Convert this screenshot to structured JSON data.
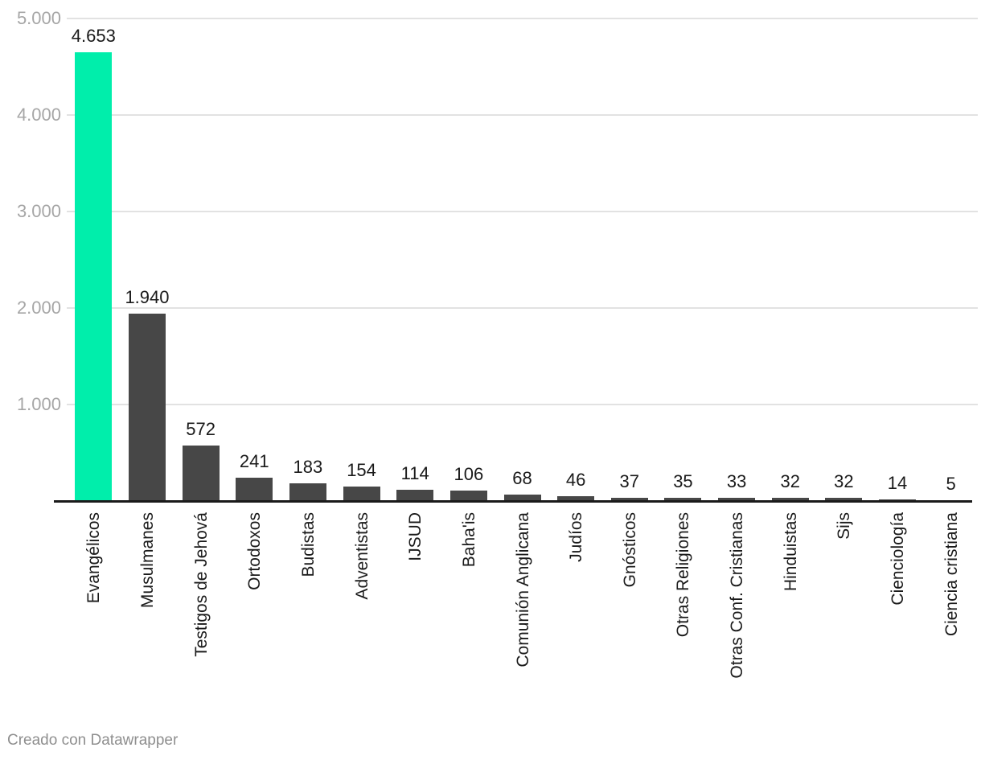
{
  "chart_data": {
    "type": "bar",
    "categories": [
      "Evangélicos",
      "Musulmanes",
      "Testigos de Jehová",
      "Ortodoxos",
      "Budistas",
      "Adventistas",
      "IJSUD",
      "Baha'is",
      "Comunión Anglicana",
      "Judíos",
      "Gnósticos",
      "Otras Religiones",
      "Otras Conf. Cristianas",
      "Hinduistas",
      "Sijs",
      "Cienciología",
      "Ciencia cristiana"
    ],
    "values": [
      4653,
      1940,
      572,
      241,
      183,
      154,
      114,
      106,
      68,
      46,
      37,
      35,
      33,
      32,
      32,
      14,
      5
    ],
    "value_labels": [
      "4.653",
      "1.940",
      "572",
      "241",
      "183",
      "154",
      "114",
      "106",
      "68",
      "46",
      "37",
      "35",
      "33",
      "32",
      "32",
      "14",
      "5"
    ],
    "y_ticks": [
      {
        "value": 1000,
        "label": "1.000"
      },
      {
        "value": 2000,
        "label": "2.000"
      },
      {
        "value": 3000,
        "label": "3.000"
      },
      {
        "value": 4000,
        "label": "4.000"
      },
      {
        "value": 5000,
        "label": "5.000"
      }
    ],
    "ylim": [
      0,
      5000
    ],
    "grid": true,
    "legend": "none",
    "title": "",
    "xlabel": "",
    "ylabel": "",
    "highlight_index": 0,
    "colors": {
      "highlight_bar": "#00eeab",
      "default_bar": "#474747",
      "gridline": "#e2e2e2",
      "axis_line": "#1a1a1a",
      "tick_text": "#a6a6a6",
      "value_text": "#1a1a1a",
      "category_text": "#1a1a1a"
    }
  },
  "footer": {
    "credit": "Creado con Datawrapper"
  }
}
